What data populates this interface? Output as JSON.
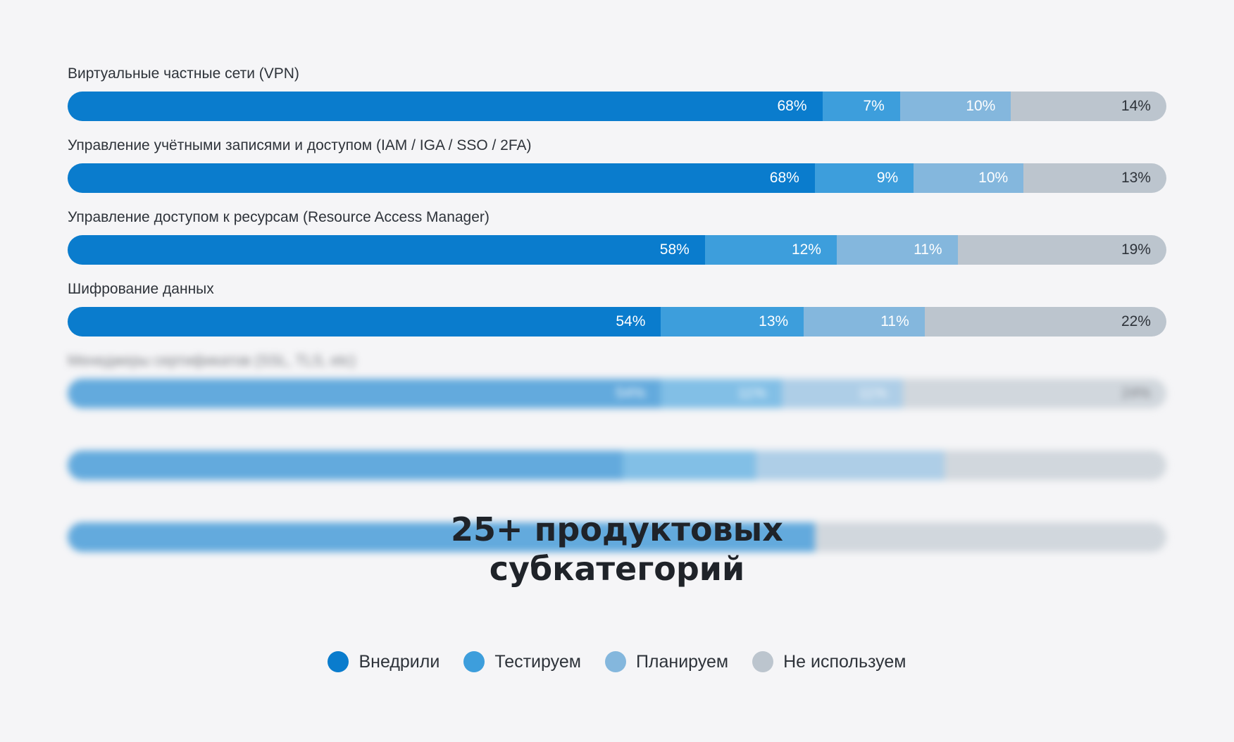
{
  "chart_data": {
    "type": "bar",
    "orientation": "horizontal",
    "stacked": true,
    "unit": "%",
    "categories": [
      "Виртуальные частные сети (VPN)",
      "Управление учётными записями и доступом (IAM / IGA / SSO / 2FA)",
      "Управление доступом к ресурсам (Resource Access Manager)",
      "Шифрование данных",
      "Менеджеры сертификатов (SSL, TLS, etc)",
      "",
      ""
    ],
    "blurred": [
      false,
      false,
      false,
      false,
      true,
      true,
      true
    ],
    "series": [
      {
        "name": "Внедрили",
        "color": "#0a7ccd",
        "values": [
          68,
          68,
          58,
          54,
          54,
          50,
          68
        ],
        "labels": [
          "68%",
          "68%",
          "58%",
          "54%",
          "54%",
          "",
          ""
        ]
      },
      {
        "name": "Тестируем",
        "color": "#3d9edc",
        "values": [
          7,
          9,
          12,
          13,
          11,
          12,
          0
        ],
        "labels": [
          "7%",
          "9%",
          "12%",
          "13%",
          "11%",
          "",
          ""
        ]
      },
      {
        "name": "Планируем",
        "color": "#84b7dd",
        "values": [
          10,
          10,
          11,
          11,
          11,
          17,
          0
        ],
        "labels": [
          "10%",
          "10%",
          "11%",
          "11%",
          "11%",
          "",
          ""
        ]
      },
      {
        "name": "Не используем",
        "color": "#bcc5ce",
        "values": [
          14,
          13,
          19,
          22,
          24,
          20,
          32
        ],
        "labels": [
          "14%",
          "13%",
          "19%",
          "22%",
          "24%",
          "",
          ""
        ]
      }
    ],
    "legend_position": "bottom-center",
    "grid": false
  },
  "headline": {
    "line1": "25+ продуктовых",
    "line2": "субкатегорий"
  }
}
